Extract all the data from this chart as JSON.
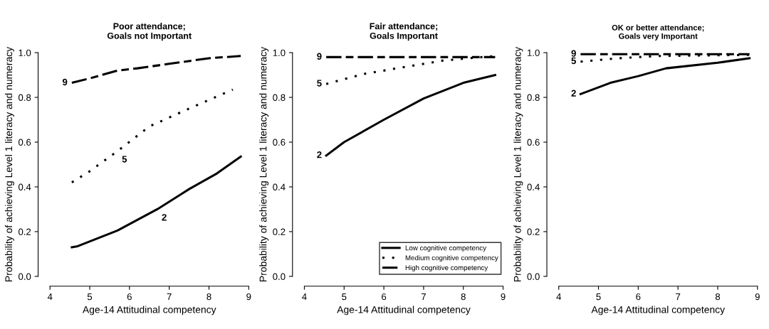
{
  "chart_data": [
    {
      "type": "line",
      "title": "Poor attendance;\nGoals not Important",
      "xlabel": "Age-14 Attitudinal competency",
      "ylabel": "Probability of achieving Level 1 literacy and numeracy",
      "xlim": [
        4,
        9
      ],
      "ylim": [
        0,
        1
      ],
      "xticks": [
        4,
        5,
        6,
        7,
        8,
        9
      ],
      "yticks": [
        {
          "value": 0,
          "label": "0.0"
        },
        {
          "value": 0.2,
          "label": "0.2"
        },
        {
          "value": 0.4,
          "label": "0.4"
        },
        {
          "value": 0.6,
          "label": "0.6"
        },
        {
          "value": 0.8,
          "label": "0.8"
        },
        {
          "value": 1,
          "label": "1.0"
        }
      ],
      "grid": false,
      "legend": false,
      "marker": "none",
      "series": [
        {
          "color": "#000000",
          "line_style": "solid",
          "x": [
            4.55,
            4.7,
            5.7,
            6.7,
            7.5,
            8.2,
            8.8
          ],
          "values": [
            0.13,
            0.135,
            0.205,
            0.3,
            0.39,
            0.46,
            0.535
          ]
        },
        {
          "color": "#000000",
          "line_style": "dotted",
          "x": [
            4.55,
            5.0,
            5.7,
            6.5,
            7.5,
            8.6
          ],
          "values": [
            0.42,
            0.47,
            0.56,
            0.67,
            0.75,
            0.835
          ]
        },
        {
          "color": "#000000",
          "line_style": "dashed",
          "x": [
            4.55,
            5.0,
            5.7,
            6.2,
            7.0,
            8.0,
            8.8
          ],
          "values": [
            0.865,
            0.885,
            0.92,
            0.93,
            0.95,
            0.975,
            0.985
          ]
        }
      ],
      "annotations": [
        {
          "text": "9",
          "x": 4.55,
          "y": 0.865
        },
        {
          "text": "5",
          "x": 5.7,
          "y": 0.56
        },
        {
          "text": "2",
          "x": 6.7,
          "y": 0.3
        }
      ]
    },
    {
      "type": "line",
      "title": "Fair attendance;\nGoals Important",
      "xlabel": "Age-14 Attitudinal competency",
      "ylabel": "Probability of achieving Level 1 literacy and numeracy",
      "xlim": [
        4,
        9
      ],
      "ylim": [
        0,
        1
      ],
      "xticks": [
        4,
        5,
        6,
        7,
        8,
        9
      ],
      "yticks": [
        {
          "value": 0,
          "label": "0.0"
        },
        {
          "value": 0.2,
          "label": "0.2"
        },
        {
          "value": 0.4,
          "label": "0.4"
        },
        {
          "value": 0.6,
          "label": "0.6"
        },
        {
          "value": 0.8,
          "label": "0.8"
        },
        {
          "value": 1,
          "label": "1.0"
        }
      ],
      "grid": false,
      "legend": "bottom right",
      "marker": "none",
      "series": [
        {
          "name": "Low cognitive competency",
          "color": "#000000",
          "line_style": "solid",
          "x": [
            4.55,
            5.0,
            6.0,
            7.0,
            8.0,
            8.8
          ],
          "values": [
            0.54,
            0.6,
            0.7,
            0.795,
            0.865,
            0.9
          ]
        },
        {
          "name": "Medium cognitive competency",
          "color": "#000000",
          "line_style": "dotted",
          "x": [
            4.55,
            5.5,
            6.5,
            7.5,
            8.8
          ],
          "values": [
            0.86,
            0.905,
            0.935,
            0.965,
            0.985
          ]
        },
        {
          "name": "High cognitive competency",
          "color": "#000000",
          "line_style": "dashed",
          "x": [
            4.55,
            8.8
          ],
          "values": [
            0.98,
            0.98
          ]
        }
      ],
      "annotations": [
        {
          "text": "9",
          "x": 4.55,
          "y": 0.98
        },
        {
          "text": "5",
          "x": 4.55,
          "y": 0.86
        },
        {
          "text": "2",
          "x": 4.55,
          "y": 0.54
        }
      ]
    },
    {
      "type": "line",
      "title": "OK or better attendance;\nGoals very Important",
      "xlabel": "Age-14 Attitudinal competency",
      "ylabel": "Probability of achieving Level 1 literacy and numeracy",
      "xlim": [
        4,
        9
      ],
      "ylim": [
        0,
        1
      ],
      "xticks": [
        4,
        5,
        6,
        7,
        8,
        9
      ],
      "yticks": [
        {
          "value": 0,
          "label": "0.0"
        },
        {
          "value": 0.2,
          "label": "0.2"
        },
        {
          "value": 0.4,
          "label": "0.4"
        },
        {
          "value": 0.6,
          "label": "0.6"
        },
        {
          "value": 0.8,
          "label": "0.8"
        },
        {
          "value": 1,
          "label": "1.0"
        }
      ],
      "grid": false,
      "legend": false,
      "marker": "none",
      "series": [
        {
          "color": "#000000",
          "line_style": "solid",
          "x": [
            4.55,
            5.3,
            6.0,
            6.7,
            8.0,
            8.8
          ],
          "values": [
            0.815,
            0.865,
            0.895,
            0.93,
            0.955,
            0.975
          ]
        },
        {
          "color": "#000000",
          "line_style": "dotted",
          "x": [
            4.55,
            5.5,
            6.5,
            8.8
          ],
          "values": [
            0.96,
            0.975,
            0.985,
            0.99
          ]
        },
        {
          "color": "#000000",
          "line_style": "dashed",
          "x": [
            4.55,
            8.8
          ],
          "values": [
            0.993,
            0.993
          ]
        }
      ],
      "annotations": [
        {
          "text": "9",
          "x": 4.55,
          "y": 0.993
        },
        {
          "text": "5",
          "x": 4.55,
          "y": 0.96
        },
        {
          "text": "2",
          "x": 4.55,
          "y": 0.815
        }
      ]
    }
  ]
}
